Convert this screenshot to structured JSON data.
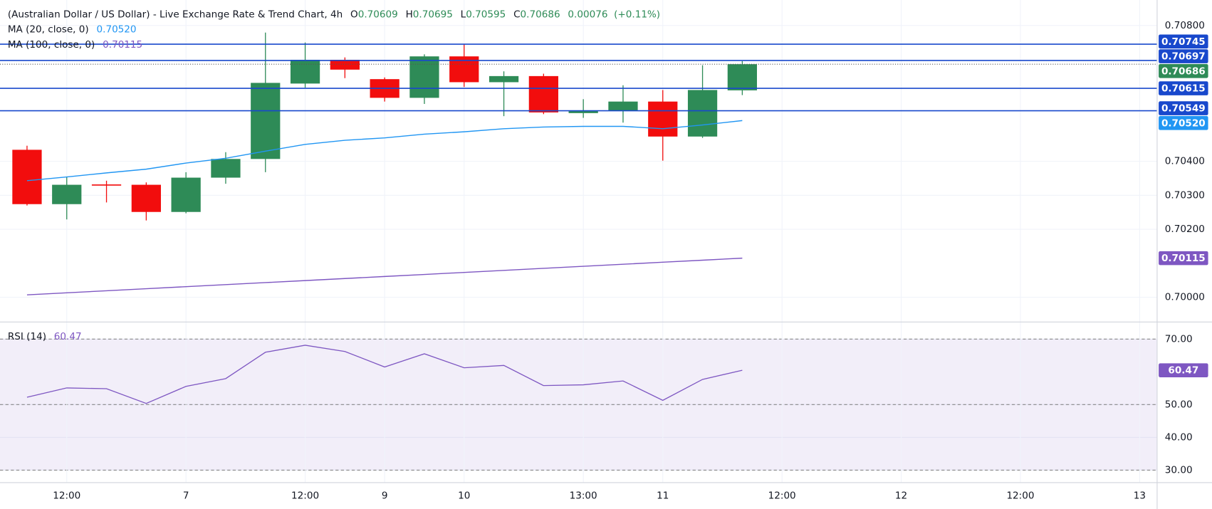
{
  "header": {
    "title": "(Australian Dollar / US Dollar) - Live Exchange Rate & Trend Chart, 4h",
    "ohlc": [
      [
        "O",
        "0.70609"
      ],
      [
        "H",
        "0.70695"
      ],
      [
        "L",
        "0.70595"
      ],
      [
        "C",
        "0.70686"
      ]
    ],
    "change": "0.00076",
    "change_pct": "(+0.11%)"
  },
  "chart_data": [
    {
      "type": "candlestick",
      "categories": [
        null,
        null,
        null,
        null,
        null,
        null,
        null,
        null,
        null,
        null,
        null,
        null,
        null,
        null,
        null,
        null,
        null,
        null,
        null
      ],
      "open": [
        0.70434,
        0.70274,
        0.70332,
        0.70331,
        0.70251,
        0.70352,
        0.70407,
        0.70629,
        0.70699,
        0.70642,
        0.70587,
        0.70709,
        0.70633,
        0.70651,
        0.70542,
        0.70549,
        0.70576,
        0.70473,
        0.70609
      ],
      "high": [
        0.70446,
        0.70354,
        0.70343,
        0.70338,
        0.70368,
        0.70427,
        0.70779,
        0.7075,
        0.70706,
        0.70647,
        0.70715,
        0.70745,
        0.70665,
        0.70658,
        0.70583,
        0.70624,
        0.7061,
        0.70683,
        0.70695
      ],
      "low": [
        0.7027,
        0.70229,
        0.70279,
        0.70226,
        0.70247,
        0.70334,
        0.70368,
        0.70617,
        0.70645,
        0.70576,
        0.70569,
        0.70619,
        0.70533,
        0.70539,
        0.70528,
        0.70514,
        0.70402,
        0.70469,
        0.70595
      ],
      "close": [
        0.70274,
        0.70331,
        0.7033,
        0.70251,
        0.70352,
        0.70407,
        0.70631,
        0.70699,
        0.7067,
        0.70587,
        0.70709,
        0.70633,
        0.70651,
        0.70544,
        0.70549,
        0.70576,
        0.70473,
        0.7061,
        0.70686
      ],
      "up_color": "#2e8b57",
      "down_color": "#f20d0d",
      "series": [
        {
          "name": "MA (20, close, 0)",
          "color": "#2196f3",
          "last_label": "0.70520",
          "values": [
            0.70343,
            0.70354,
            0.70366,
            0.70377,
            0.70395,
            0.70409,
            0.7043,
            0.7045,
            0.70462,
            0.70469,
            0.7048,
            0.70487,
            0.70496,
            0.70501,
            0.70503,
            0.70503,
            0.70496,
            0.70507,
            0.7052
          ]
        },
        {
          "name": "MA (100, close, 0)",
          "color": "#7e57c2",
          "last_label": "0.70115",
          "values": [
            0.70007,
            0.70013,
            0.70019,
            0.70025,
            0.70031,
            0.70037,
            0.70043,
            0.70049,
            0.70055,
            0.70061,
            0.70067,
            0.70073,
            0.70079,
            0.70085,
            0.70091,
            0.70097,
            0.70103,
            0.70109,
            0.70115
          ]
        }
      ],
      "price_lines": [
        {
          "value": 0.70745,
          "label": "0.70745",
          "color": "#1848cc"
        },
        {
          "value": 0.70697,
          "label": "0.70697",
          "color": "#1848cc"
        },
        {
          "value": 0.70615,
          "label": "0.70615",
          "color": "#1848cc"
        },
        {
          "value": 0.70549,
          "label": "0.70549",
          "color": "#1848cc"
        }
      ],
      "last_price": {
        "value": 0.70686,
        "label": "0.70686",
        "color": "#2e8b57"
      },
      "xlim": [
        -0.68,
        28.44
      ],
      "ylim": [
        0.69927,
        0.70875
      ],
      "yticks": [
        {
          "value": 0.7,
          "label": "0.70000"
        },
        {
          "value": 0.702,
          "label": "0.70200"
        },
        {
          "value": 0.703,
          "label": "0.70300"
        },
        {
          "value": 0.704,
          "label": "0.70400"
        },
        {
          "value": 0.708,
          "label": "0.70800"
        }
      ],
      "grid": true
    },
    {
      "type": "line",
      "title": "RSI (14)",
      "value_label": "60.47",
      "color": "#7e57c2",
      "categories": [
        null,
        null,
        null,
        null,
        null,
        null,
        null,
        null,
        null,
        null,
        null,
        null,
        null,
        null,
        null,
        null,
        null,
        null,
        null
      ],
      "values": [
        52.25,
        55.09,
        54.85,
        50.36,
        55.56,
        57.93,
        65.98,
        68.11,
        66.21,
        61.48,
        65.5,
        61.24,
        61.95,
        55.8,
        56.04,
        57.22,
        51.3,
        57.69,
        60.47
      ],
      "levels": [
        70,
        50,
        30
      ],
      "xlim": [
        -0.68,
        28.44
      ],
      "ylim": [
        26.2,
        75.2
      ],
      "yticks": [
        {
          "value": 70,
          "label": "70.00"
        },
        {
          "value": 50,
          "label": "50.00"
        },
        {
          "value": 40,
          "label": "40.00"
        },
        {
          "value": 30,
          "label": "30.00"
        }
      ],
      "xticks": [
        {
          "value": 1,
          "label": "12:00"
        },
        {
          "value": 4,
          "label": "7"
        },
        {
          "value": 7,
          "label": "12:00"
        },
        {
          "value": 9,
          "label": "9"
        },
        {
          "value": 11,
          "label": "10"
        },
        {
          "value": 14,
          "label": "13:00"
        },
        {
          "value": 16,
          "label": "11"
        },
        {
          "value": 19,
          "label": "12:00"
        },
        {
          "value": 22,
          "label": "12"
        },
        {
          "value": 25,
          "label": "12:00"
        },
        {
          "value": 28,
          "label": "13"
        }
      ],
      "grid": true
    }
  ]
}
